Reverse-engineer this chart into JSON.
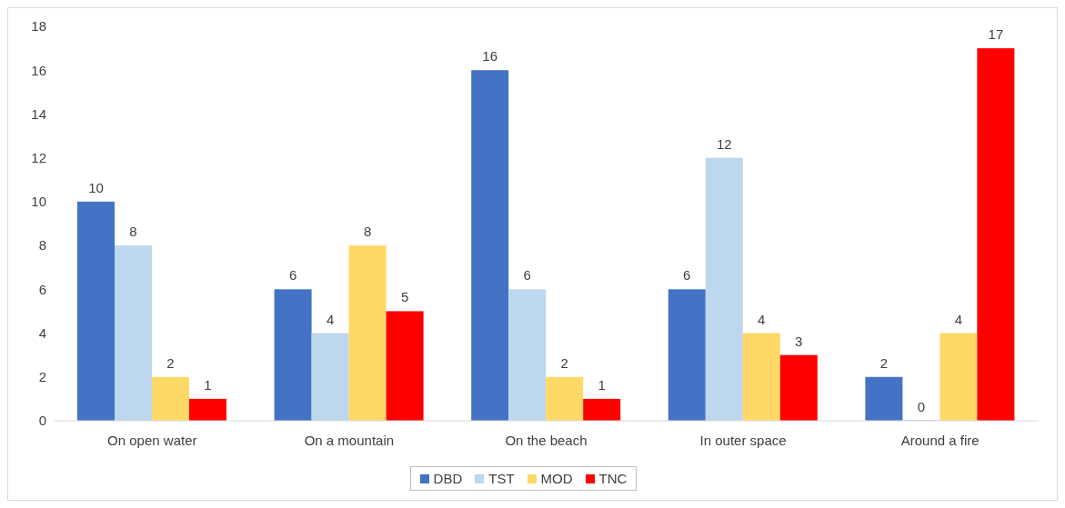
{
  "chart_data": {
    "type": "bar",
    "categories": [
      "On open water",
      "On a mountain",
      "On the beach",
      "In outer space",
      "Around a fire"
    ],
    "series": [
      {
        "name": "DBD",
        "color": "#4472c4",
        "values": [
          10,
          6,
          16,
          6,
          2
        ]
      },
      {
        "name": "TST",
        "color": "#bdd7ee",
        "values": [
          8,
          4,
          6,
          12,
          0
        ]
      },
      {
        "name": "MOD",
        "color": "#ffd966",
        "values": [
          2,
          8,
          2,
          4,
          4
        ]
      },
      {
        "name": "TNC",
        "color": "#ff0000",
        "values": [
          1,
          5,
          1,
          3,
          17
        ]
      }
    ],
    "ylim": [
      0,
      18
    ],
    "yticks": [
      0,
      2,
      4,
      6,
      8,
      10,
      12,
      14,
      16,
      18
    ],
    "grid": false,
    "legend": "bottom",
    "data_labels": true
  }
}
